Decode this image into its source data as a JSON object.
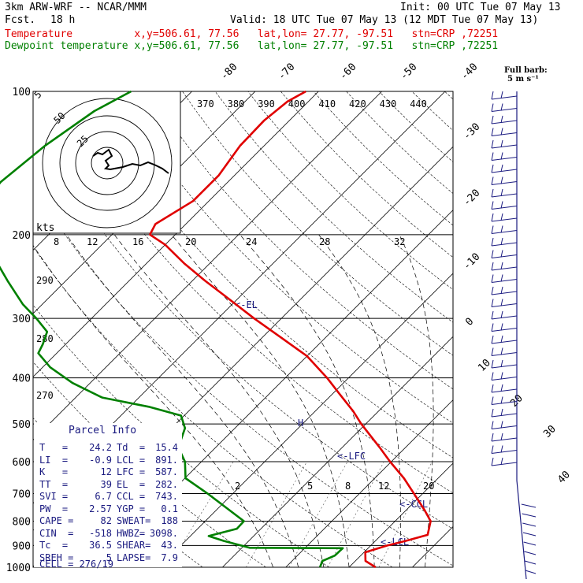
{
  "header": {
    "model": "3km ARW-WRF -- NCAR/MMM",
    "init": "Init: 00 UTC Tue 07 May 13",
    "fcst_label": "Fcst.",
    "fcst_value": "18 h",
    "valid": "Valid: 18 UTC Tue 07 May 13 (12 MDT Tue 07 May 13)",
    "temp_line": "Temperature          x,y=506.61, 77.56   lat,lon= 27.77, -97.51   stn=CRP ,72251",
    "dew_line": "Dewpoint temperature x,y=506.61, 77.56   lat,lon= 27.77, -97.51   stn=CRP ,72251",
    "temp_color": "#e00000",
    "dew_color": "#008000"
  },
  "barb_legend": {
    "line1": "Full barb:",
    "line2": "5 m s⁻¹"
  },
  "hodograph": {
    "ring_labels": [
      "5",
      "25",
      "50"
    ],
    "units": "kts"
  },
  "parcel_info": {
    "title": "Parcel Info",
    "rows": [
      [
        "T   =",
        "24.2",
        "Td  =",
        "15.4"
      ],
      [
        "LI  =",
        "-0.9",
        "LCL =",
        "891."
      ],
      [
        "K   =",
        "12",
        "LFC =",
        "587."
      ],
      [
        "TT  =",
        "39",
        "EL  =",
        "282."
      ],
      [
        "SVI =",
        "6.7",
        "CCL =",
        "743."
      ],
      [
        "PW  =",
        "2.57",
        "YGP =",
        "0.1"
      ],
      [
        "CAPE =",
        "82",
        "SWEAT=",
        "188"
      ],
      [
        "CIN  =",
        "-518",
        "HWBZ=",
        "3098."
      ],
      [
        "Tc  =",
        "36.5",
        "SHEAR=",
        "43."
      ],
      [
        "SREH =",
        "5",
        "LAPSE=",
        "7.9"
      ]
    ],
    "cell": "CELL = 276/19"
  },
  "annotations": {
    "el": "<-EL",
    "lfc": "<-LFC",
    "ccl": "<-CCL",
    "lcl": "<-LCL",
    "h": "H"
  },
  "chart_data": {
    "type": "line",
    "chart_kind": "Skew-T log-P diagram",
    "y_axis_pressure_hPa": [
      100,
      200,
      300,
      400,
      500,
      600,
      700,
      800,
      900,
      1000
    ],
    "ylim": [
      1000,
      100
    ],
    "y_scale": "log",
    "isotherm_labels_C": [
      "-80",
      "-70",
      "-60",
      "-50",
      "-40",
      "-30",
      "-20",
      "-10",
      "0",
      "10",
      "20",
      "30",
      "40"
    ],
    "dry_adiabat_labels_K": [
      "370",
      "380",
      "390",
      "400",
      "410",
      "420",
      "430",
      "440"
    ],
    "saturated_adiabat_labels_C": [
      "8",
      "12",
      "16",
      "20",
      "24",
      "28",
      "32"
    ],
    "dry_adiabat_labels_low_K": [
      "290",
      "280",
      "270"
    ],
    "mixing_ratio_labels": [
      "2",
      "5",
      "8",
      "12",
      "20"
    ],
    "series": [
      {
        "name": "Temperature",
        "color": "#e00000",
        "points_p_T": [
          [
            1000,
            24.2
          ],
          [
            970,
            21.6
          ],
          [
            930,
            20.2
          ],
          [
            900,
            22.6
          ],
          [
            880,
            24.8
          ],
          [
            855,
            27.3
          ],
          [
            800,
            25.6
          ],
          [
            760,
            23.0
          ],
          [
            700,
            18.6
          ],
          [
            650,
            14.6
          ],
          [
            600,
            9.8
          ],
          [
            560,
            5.9
          ],
          [
            500,
            -0.7
          ],
          [
            470,
            -4.0
          ],
          [
            430,
            -9.2
          ],
          [
            400,
            -13.4
          ],
          [
            360,
            -20.0
          ],
          [
            330,
            -26.8
          ],
          [
            300,
            -34.3
          ],
          [
            270,
            -42.2
          ],
          [
            250,
            -48.0
          ],
          [
            230,
            -54.0
          ],
          [
            210,
            -60.0
          ],
          [
            200,
            -64.0
          ],
          [
            190,
            -64.8
          ],
          [
            170,
            -62.5
          ],
          [
            150,
            -62.5
          ],
          [
            130,
            -63.8
          ],
          [
            115,
            -64.0
          ],
          [
            105,
            -63.3
          ],
          [
            100,
            -62.0
          ]
        ]
      },
      {
        "name": "Dewpoint temperature",
        "color": "#008000",
        "points_p_T": [
          [
            1000,
            15.4
          ],
          [
            970,
            14.8
          ],
          [
            945,
            15.9
          ],
          [
            912,
            16.0
          ],
          [
            910,
            1.2
          ],
          [
            880,
            -4.0
          ],
          [
            860,
            -7.1
          ],
          [
            830,
            -3.8
          ],
          [
            800,
            -3.9
          ],
          [
            700,
            -14.0
          ],
          [
            650,
            -19.9
          ],
          [
            600,
            -22.6
          ],
          [
            560,
            -25.9
          ],
          [
            510,
            -27.9
          ],
          [
            480,
            -30.5
          ],
          [
            460,
            -37.0
          ],
          [
            440,
            -45.8
          ],
          [
            410,
            -52.8
          ],
          [
            380,
            -58.8
          ],
          [
            355,
            -62.9
          ],
          [
            340,
            -63.6
          ],
          [
            320,
            -64.9
          ],
          [
            300,
            -68.7
          ],
          [
            280,
            -73.1
          ],
          [
            250,
            -79.2
          ],
          [
            220,
            -85.8
          ],
          [
            200,
            -91.5
          ],
          [
            180,
            -94.9
          ],
          [
            155,
            -95.9
          ],
          [
            130,
            -94.6
          ],
          [
            110,
            -92.3
          ],
          [
            100,
            -89.6
          ]
        ]
      }
    ]
  }
}
